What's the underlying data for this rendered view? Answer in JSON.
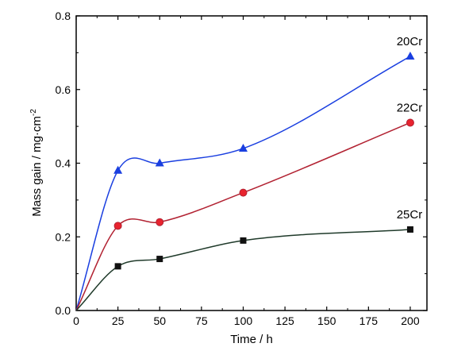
{
  "chart_data": {
    "type": "line",
    "xlabel": "Time / h",
    "ylabel": "Mass gain / mg·cm",
    "ylabel_exponent": "-2",
    "xlim": [
      0,
      210
    ],
    "ylim": [
      0,
      0.8
    ],
    "xticks": [
      "0",
      "25",
      "50",
      "75",
      "100",
      "125",
      "150",
      "175",
      "200"
    ],
    "yticks": [
      "0.0",
      "0.2",
      "0.4",
      "0.6",
      "0.8"
    ],
    "grid": false,
    "legend": "none",
    "smooth": true,
    "series": [
      {
        "name": "20Cr",
        "color": "#1a3fe0",
        "marker": "triangle",
        "x": [
          0,
          25,
          50,
          100,
          200
        ],
        "y": [
          0,
          0.38,
          0.4,
          0.44,
          0.69
        ]
      },
      {
        "name": "22Cr",
        "color": "#b22232",
        "marker": "circle",
        "x": [
          0,
          25,
          50,
          100,
          200
        ],
        "y": [
          0,
          0.23,
          0.24,
          0.32,
          0.51
        ]
      },
      {
        "name": "25Cr",
        "color": "#1f3a2a",
        "marker": "square",
        "x": [
          0,
          25,
          50,
          100,
          200
        ],
        "y": [
          0,
          0.12,
          0.14,
          0.19,
          0.22
        ]
      }
    ]
  }
}
